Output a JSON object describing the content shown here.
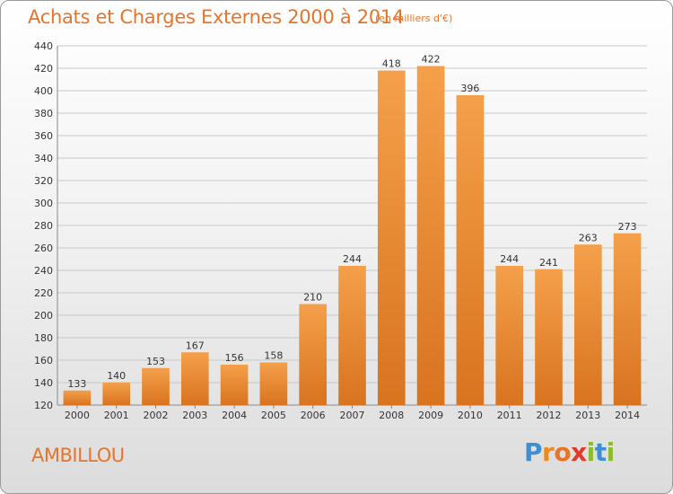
{
  "chart_data": {
    "type": "bar",
    "title": "Achats et Charges Externes 2000 à 2014",
    "subtitle": "(en milliers d'€)",
    "categories": [
      "2000",
      "2001",
      "2002",
      "2003",
      "2004",
      "2005",
      "2006",
      "2007",
      "2008",
      "2009",
      "2010",
      "2011",
      "2012",
      "2013",
      "2014"
    ],
    "values": [
      133,
      140,
      153,
      167,
      156,
      158,
      210,
      244,
      418,
      422,
      396,
      244,
      241,
      263,
      273
    ],
    "ylim": [
      120,
      440
    ],
    "yticks": [
      120,
      140,
      160,
      180,
      200,
      220,
      240,
      260,
      280,
      300,
      320,
      340,
      360,
      380,
      400,
      420,
      440
    ],
    "grid": true,
    "bar_color_top": "#f4a04a",
    "bar_color_bottom": "#d9731f"
  },
  "footer": {
    "commune": "AMBILLOU",
    "logo_letters": [
      "P",
      "r",
      "o",
      "x",
      "i",
      "t",
      "i"
    ],
    "logo_colors": [
      "#3d8fd1",
      "#f08a1c",
      "#e8742a",
      "#e03a2a",
      "#8bbd2a",
      "#3d8fd1",
      "#8bbd2a"
    ]
  }
}
